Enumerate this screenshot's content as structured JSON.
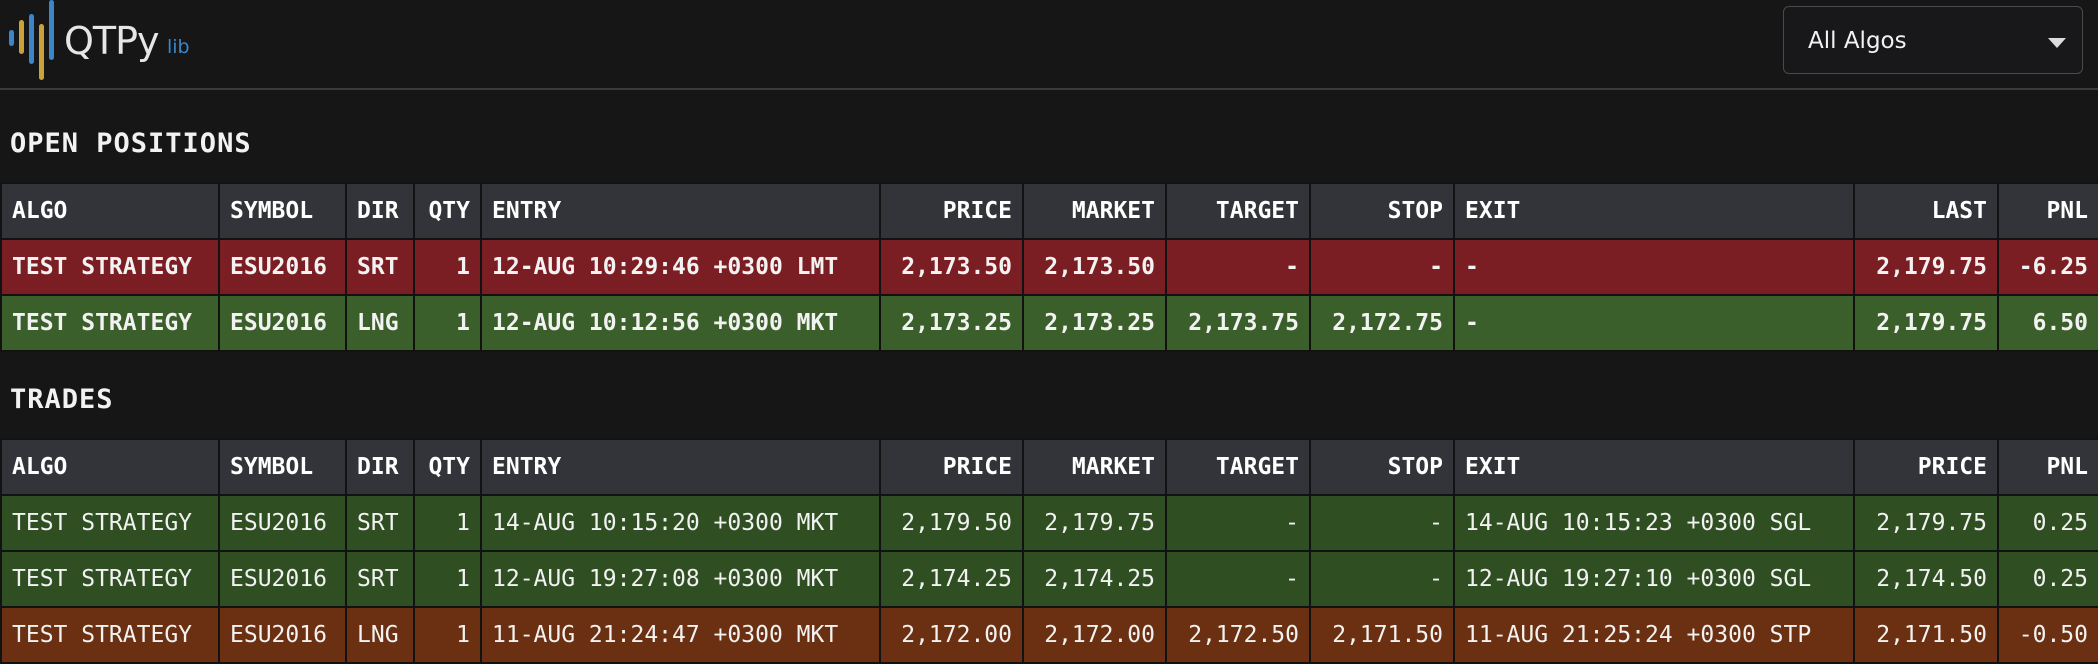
{
  "app": {
    "logo_text": "QTPy",
    "logo_sub": "lib",
    "algo_select": {
      "selected": "All Algos"
    }
  },
  "open_positions": {
    "title": "OPEN POSITIONS",
    "columns": [
      "ALGO",
      "SYMBOL",
      "DIR",
      "QTY",
      "ENTRY",
      "PRICE",
      "MARKET",
      "TARGET",
      "STOP",
      "EXIT",
      "LAST",
      "PNL"
    ],
    "rows": [
      {
        "status": "loss",
        "algo": "TEST STRATEGY",
        "symbol": "ESU2016",
        "dir": "SRT",
        "qty": "1",
        "entry": "12-AUG 10:29:46 +0300 LMT",
        "price": "2,173.50",
        "market": "2,173.50",
        "target": "-",
        "stop": "-",
        "exit": "-",
        "last": "2,179.75",
        "pnl": "-6.25"
      },
      {
        "status": "profit",
        "algo": "TEST STRATEGY",
        "symbol": "ESU2016",
        "dir": "LNG",
        "qty": "1",
        "entry": "12-AUG 10:12:56 +0300 MKT",
        "price": "2,173.25",
        "market": "2,173.25",
        "target": "2,173.75",
        "stop": "2,172.75",
        "exit": "-",
        "last": "2,179.75",
        "pnl": "6.50"
      }
    ]
  },
  "trades": {
    "title": "TRADES",
    "columns": [
      "ALGO",
      "SYMBOL",
      "DIR",
      "QTY",
      "ENTRY",
      "PRICE",
      "MARKET",
      "TARGET",
      "STOP",
      "EXIT",
      "PRICE",
      "PNL"
    ],
    "rows": [
      {
        "status": "profit",
        "algo": "TEST STRATEGY",
        "symbol": "ESU2016",
        "dir": "SRT",
        "qty": "1",
        "entry": "14-AUG 10:15:20 +0300 MKT",
        "price": "2,179.50",
        "market": "2,179.75",
        "target": "-",
        "stop": "-",
        "exit": "14-AUG 10:15:23 +0300 SGL",
        "exit_price": "2,179.75",
        "pnl": "0.25"
      },
      {
        "status": "profit",
        "algo": "TEST STRATEGY",
        "symbol": "ESU2016",
        "dir": "SRT",
        "qty": "1",
        "entry": "12-AUG 19:27:08 +0300 MKT",
        "price": "2,174.25",
        "market": "2,174.25",
        "target": "-",
        "stop": "-",
        "exit": "12-AUG 19:27:10 +0300 SGL",
        "exit_price": "2,174.50",
        "pnl": "0.25"
      },
      {
        "status": "loss",
        "algo": "TEST STRATEGY",
        "symbol": "ESU2016",
        "dir": "LNG",
        "qty": "1",
        "entry": "11-AUG 21:24:47 +0300 MKT",
        "price": "2,172.00",
        "market": "2,172.00",
        "target": "2,172.50",
        "stop": "2,171.50",
        "exit": "11-AUG 21:25:24 +0300 STP",
        "exit_price": "2,171.50",
        "pnl": "-0.50"
      }
    ]
  },
  "colors": {
    "open_loss": "#7b1e24",
    "open_profit": "#3a5f2a",
    "trade_profit": "#2f4f22",
    "trade_loss": "#6b3012",
    "header_bg": "#333439",
    "logo_bar_blue": "#3a86c8",
    "logo_bar_gold": "#c9a33a"
  }
}
